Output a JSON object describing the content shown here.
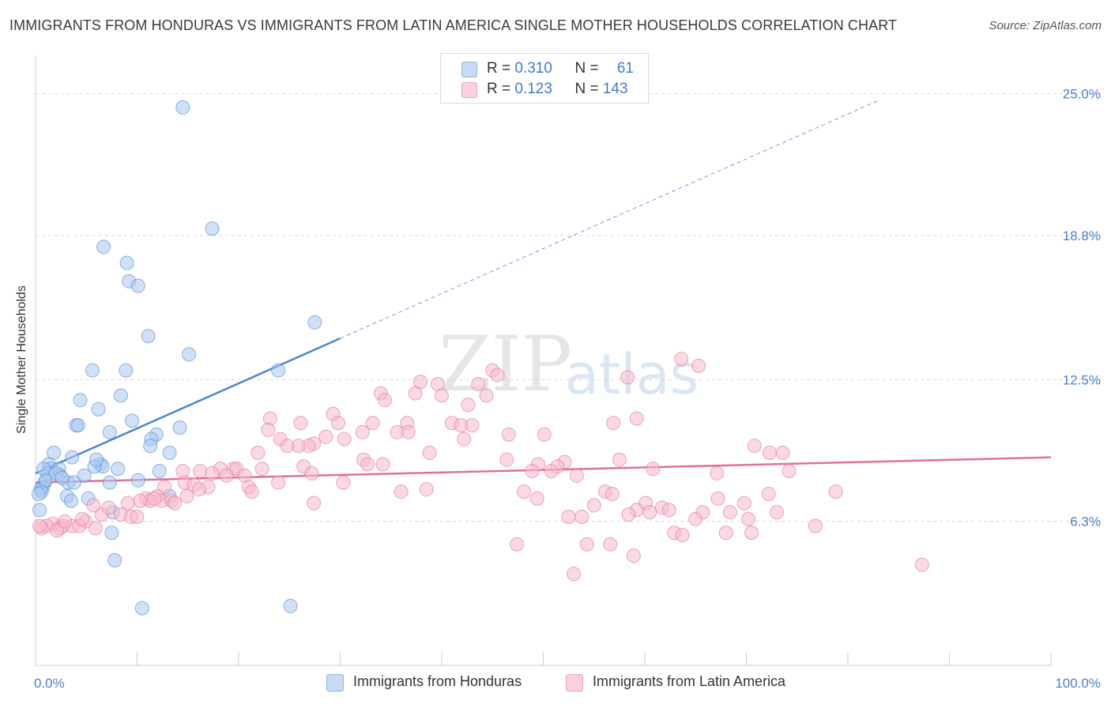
{
  "title": "IMMIGRANTS FROM HONDURAS VS IMMIGRANTS FROM LATIN AMERICA SINGLE MOTHER HOUSEHOLDS CORRELATION CHART",
  "source": "Source: ZipAtlas.com",
  "watermark": {
    "zip": "ZIP",
    "atlas": "atlas"
  },
  "legend": {
    "rows": [
      {
        "r_label": "R = ",
        "r_value": "0.310",
        "n_label": "N = ",
        "n_value": "61",
        "color": "#a9c8f0"
      },
      {
        "r_label": "R = ",
        "r_value": "0.123",
        "n_label": "N = ",
        "n_value": "143",
        "color": "#f7b9cc"
      }
    ]
  },
  "bottom_legend": {
    "items": [
      {
        "label": "Immigrants from Honduras",
        "color": "#a9c8f0"
      },
      {
        "label": "Immigrants from Latin America",
        "color": "#f7b9cc"
      }
    ]
  },
  "chart_data": {
    "type": "scatter",
    "title": "IMMIGRANTS FROM HONDURAS VS IMMIGRANTS FROM LATIN AMERICA SINGLE MOTHER HOUSEHOLDS CORRELATION CHART",
    "xlabel": "",
    "ylabel": "Single Mother Households",
    "xlim": [
      0,
      100
    ],
    "ylim": [
      0,
      26.4
    ],
    "x_tick_labels": [
      "0.0%",
      "100.0%"
    ],
    "y_ticks": [
      6.3,
      12.5,
      18.8,
      25.0
    ],
    "y_tick_labels": [
      "6.3%",
      "12.5%",
      "18.8%",
      "25.0%"
    ],
    "grid": "horizontal dashed",
    "series": [
      {
        "name": "Immigrants from Honduras",
        "color": "#4a86d4",
        "fill": "#a9c8f0",
        "R": 0.31,
        "N": 61,
        "trend": {
          "x0": 0,
          "y0": 8.4,
          "x1": 30,
          "y1": 14.3,
          "dashed_to_x": 83,
          "dashed_to_y": 24.7
        },
        "points": [
          [
            14.5,
            24.4
          ],
          [
            17.4,
            19.1
          ],
          [
            6.7,
            18.3
          ],
          [
            9.0,
            17.6
          ],
          [
            9.2,
            16.8
          ],
          [
            10.1,
            16.6
          ],
          [
            27.5,
            15.0
          ],
          [
            11.1,
            14.4
          ],
          [
            15.1,
            13.6
          ],
          [
            5.6,
            12.9
          ],
          [
            8.9,
            12.9
          ],
          [
            23.9,
            12.9
          ],
          [
            4.4,
            11.6
          ],
          [
            8.4,
            11.8
          ],
          [
            6.2,
            11.2
          ],
          [
            4.0,
            10.5
          ],
          [
            4.2,
            10.5
          ],
          [
            9.5,
            10.7
          ],
          [
            14.2,
            10.4
          ],
          [
            7.3,
            10.2
          ],
          [
            11.9,
            10.1
          ],
          [
            11.4,
            9.9
          ],
          [
            11.3,
            9.6
          ],
          [
            1.8,
            9.3
          ],
          [
            3.6,
            9.1
          ],
          [
            13.2,
            9.3
          ],
          [
            6.4,
            8.8
          ],
          [
            6.6,
            8.7
          ],
          [
            1.3,
            8.8
          ],
          [
            1.5,
            8.6
          ],
          [
            2.3,
            8.6
          ],
          [
            8.1,
            8.6
          ],
          [
            5.8,
            8.7
          ],
          [
            12.2,
            8.5
          ],
          [
            4.8,
            8.3
          ],
          [
            2.4,
            8.3
          ],
          [
            0.9,
            8.0
          ],
          [
            0.7,
            7.8
          ],
          [
            3.2,
            8.0
          ],
          [
            3.8,
            8.0
          ],
          [
            7.3,
            8.0
          ],
          [
            10.1,
            8.1
          ],
          [
            0.5,
            7.7
          ],
          [
            3.1,
            7.4
          ],
          [
            13.2,
            7.4
          ],
          [
            0.4,
            6.8
          ],
          [
            5.2,
            7.3
          ],
          [
            7.6,
            6.7
          ],
          [
            7.5,
            5.8
          ],
          [
            1.2,
            8.4
          ],
          [
            0.8,
            8.6
          ],
          [
            3.5,
            7.2
          ],
          [
            0.6,
            7.6
          ],
          [
            7.8,
            4.6
          ],
          [
            10.5,
            2.5
          ],
          [
            25.1,
            2.6
          ],
          [
            0.3,
            7.5
          ],
          [
            1.0,
            8.1
          ],
          [
            2.0,
            8.4
          ],
          [
            2.6,
            8.2
          ],
          [
            6.0,
            9.0
          ]
        ]
      },
      {
        "name": "Immigrants from Latin America",
        "color": "#e0709a",
        "fill": "#f7b9cc",
        "R": 0.123,
        "N": 143,
        "trend": {
          "x0": 0,
          "y0": 8.0,
          "x1": 100,
          "y1": 9.1
        },
        "points": [
          [
            63.6,
            13.4
          ],
          [
            65.3,
            13.1
          ],
          [
            45.0,
            12.9
          ],
          [
            45.5,
            12.7
          ],
          [
            58.3,
            12.6
          ],
          [
            37.9,
            12.4
          ],
          [
            39.6,
            12.3
          ],
          [
            43.6,
            12.3
          ],
          [
            34.0,
            11.9
          ],
          [
            37.4,
            11.9
          ],
          [
            40.0,
            11.8
          ],
          [
            44.4,
            11.8
          ],
          [
            34.4,
            11.6
          ],
          [
            42.6,
            11.4
          ],
          [
            29.3,
            11.0
          ],
          [
            23.1,
            10.8
          ],
          [
            26.1,
            10.6
          ],
          [
            29.8,
            10.6
          ],
          [
            33.2,
            10.6
          ],
          [
            36.6,
            10.6
          ],
          [
            41.0,
            10.6
          ],
          [
            41.9,
            10.5
          ],
          [
            43.0,
            10.5
          ],
          [
            56.9,
            10.6
          ],
          [
            59.2,
            10.8
          ],
          [
            22.9,
            10.3
          ],
          [
            32.2,
            10.2
          ],
          [
            35.6,
            10.2
          ],
          [
            36.7,
            10.2
          ],
          [
            46.6,
            10.1
          ],
          [
            50.1,
            10.1
          ],
          [
            28.6,
            10.0
          ],
          [
            30.4,
            9.9
          ],
          [
            24.1,
            9.9
          ],
          [
            42.2,
            9.9
          ],
          [
            27.4,
            9.7
          ],
          [
            26.9,
            9.6
          ],
          [
            25.9,
            9.6
          ],
          [
            24.8,
            9.6
          ],
          [
            21.9,
            9.3
          ],
          [
            38.8,
            9.3
          ],
          [
            70.8,
            9.6
          ],
          [
            72.3,
            9.3
          ],
          [
            73.6,
            9.3
          ],
          [
            32.3,
            9.0
          ],
          [
            46.4,
            9.0
          ],
          [
            52.1,
            8.9
          ],
          [
            57.5,
            9.0
          ],
          [
            32.7,
            8.8
          ],
          [
            34.2,
            8.8
          ],
          [
            49.5,
            8.8
          ],
          [
            51.4,
            8.7
          ],
          [
            26.4,
            8.7
          ],
          [
            18.2,
            8.6
          ],
          [
            19.5,
            8.6
          ],
          [
            22.3,
            8.6
          ],
          [
            19.8,
            8.6
          ],
          [
            14.5,
            8.5
          ],
          [
            48.9,
            8.5
          ],
          [
            50.8,
            8.5
          ],
          [
            60.8,
            8.6
          ],
          [
            74.2,
            8.5
          ],
          [
            67.1,
            8.4
          ],
          [
            16.2,
            8.5
          ],
          [
            17.4,
            8.4
          ],
          [
            20.6,
            8.3
          ],
          [
            18.8,
            8.3
          ],
          [
            27.2,
            8.4
          ],
          [
            53.3,
            8.3
          ],
          [
            30.3,
            8.0
          ],
          [
            14.7,
            8.0
          ],
          [
            23.9,
            8.0
          ],
          [
            15.6,
            7.9
          ],
          [
            12.7,
            7.8
          ],
          [
            17.0,
            7.8
          ],
          [
            21.0,
            7.8
          ],
          [
            16.1,
            7.7
          ],
          [
            21.3,
            7.6
          ],
          [
            38.5,
            7.7
          ],
          [
            36.0,
            7.6
          ],
          [
            48.1,
            7.6
          ],
          [
            56.1,
            7.6
          ],
          [
            56.8,
            7.5
          ],
          [
            78.8,
            7.6
          ],
          [
            72.2,
            7.5
          ],
          [
            12.0,
            7.4
          ],
          [
            14.9,
            7.4
          ],
          [
            10.9,
            7.3
          ],
          [
            11.3,
            7.2
          ],
          [
            12.4,
            7.2
          ],
          [
            13.4,
            7.2
          ],
          [
            49.4,
            7.3
          ],
          [
            67.2,
            7.3
          ],
          [
            10.3,
            7.2
          ],
          [
            11.7,
            7.3
          ],
          [
            9.1,
            7.1
          ],
          [
            13.7,
            7.1
          ],
          [
            27.4,
            7.1
          ],
          [
            55.0,
            7.0
          ],
          [
            60.1,
            7.1
          ],
          [
            69.8,
            7.1
          ],
          [
            61.7,
            6.9
          ],
          [
            59.2,
            6.8
          ],
          [
            62.4,
            6.8
          ],
          [
            65.7,
            6.7
          ],
          [
            73.0,
            6.7
          ],
          [
            68.4,
            6.7
          ],
          [
            60.5,
            6.7
          ],
          [
            58.4,
            6.6
          ],
          [
            8.4,
            6.6
          ],
          [
            9.4,
            6.5
          ],
          [
            10.0,
            6.5
          ],
          [
            52.5,
            6.5
          ],
          [
            53.8,
            6.5
          ],
          [
            65.0,
            6.4
          ],
          [
            70.2,
            6.4
          ],
          [
            4.9,
            6.3
          ],
          [
            3.6,
            6.1
          ],
          [
            4.3,
            6.1
          ],
          [
            2.7,
            6.1
          ],
          [
            1.7,
            6.2
          ],
          [
            2.4,
            6.0
          ],
          [
            5.9,
            6.0
          ],
          [
            6.5,
            6.6
          ],
          [
            1.1,
            6.1
          ],
          [
            2.1,
            5.9
          ],
          [
            0.6,
            6.0
          ],
          [
            0.4,
            6.1
          ],
          [
            76.8,
            6.1
          ],
          [
            68.0,
            5.8
          ],
          [
            62.9,
            5.8
          ],
          [
            63.7,
            5.7
          ],
          [
            70.5,
            5.8
          ],
          [
            54.3,
            5.3
          ],
          [
            56.6,
            5.3
          ],
          [
            47.4,
            5.3
          ],
          [
            58.9,
            4.8
          ],
          [
            53.0,
            4.0
          ],
          [
            87.3,
            4.4
          ],
          [
            5.7,
            7.0
          ],
          [
            7.2,
            6.9
          ],
          [
            2.9,
            6.3
          ],
          [
            4.6,
            6.4
          ]
        ]
      }
    ]
  }
}
